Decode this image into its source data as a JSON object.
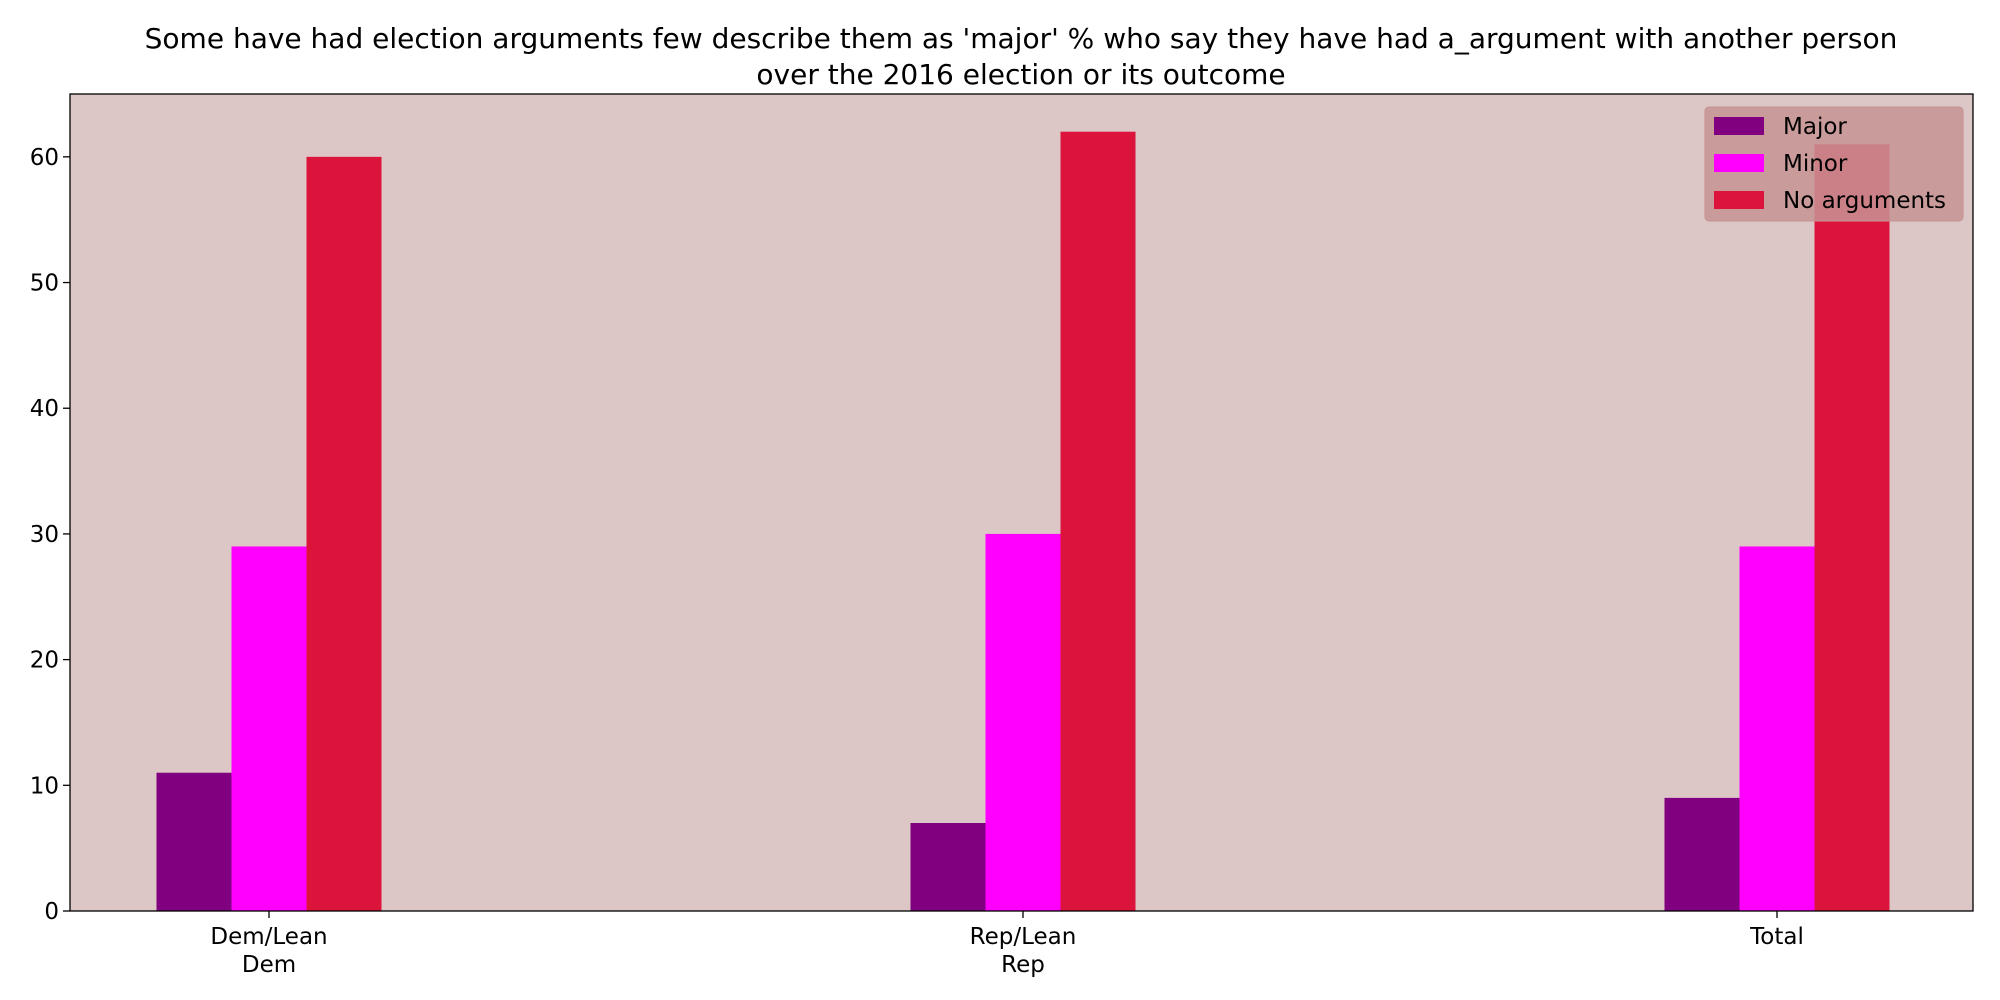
{
  "chart_data": {
    "type": "bar",
    "title_lines": [
      "Some have had election arguments few describe them as 'major' % who say they have had a_argument with another person",
      "over the 2016 election or its outcome"
    ],
    "categories": [
      [
        "Dem/Lean",
        "Dem"
      ],
      [
        "Rep/Lean",
        "Rep"
      ],
      [
        "Total"
      ]
    ],
    "series": [
      {
        "name": "Major",
        "values": [
          11,
          7,
          9
        ],
        "color": "#800080"
      },
      {
        "name": "Minor",
        "values": [
          29,
          30,
          29
        ],
        "color": "#ff00ff"
      },
      {
        "name": "No arguments",
        "values": [
          60,
          62,
          61
        ],
        "color": "#dc143c"
      }
    ],
    "ylim": [
      0,
      65
    ],
    "yticks": [
      0,
      10,
      20,
      30,
      40,
      50,
      60
    ],
    "xlabel": "",
    "ylabel": "",
    "legend_position": "top-right",
    "grid": false,
    "plot_background": "#dcc6c6",
    "legend_background": "#c79393"
  }
}
